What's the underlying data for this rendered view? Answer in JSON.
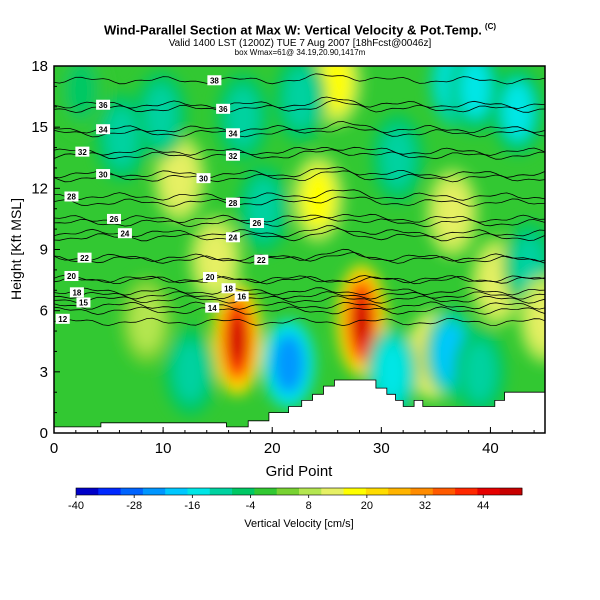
{
  "header": {
    "title": "Wind-Parallel Section at Max W: Vertical Velocity & Pot.Temp.",
    "title_mark": "(C)",
    "subtitle": "Valid 1400 LST (1200Z) TUE 7 Aug 2007 [18hFcst@0046z]",
    "subtitle2": "box Wmax=61@ 34.19,20.90,1417m"
  },
  "chart_data": {
    "type": "heatmap",
    "xlabel": "Grid Point",
    "ylabel": "Height [Kft MSL]",
    "xlim": [
      0,
      45
    ],
    "ylim": [
      0,
      18
    ],
    "xticks": [
      0,
      10,
      20,
      30,
      40
    ],
    "yticks": [
      0,
      3,
      6,
      9,
      12,
      15,
      18
    ],
    "colorbar": {
      "label": "Vertical Velocity [cm/s]",
      "range": [
        -40,
        52
      ],
      "ticks": [
        -40,
        -28,
        -16,
        -4,
        8,
        20,
        32,
        44
      ],
      "colors": [
        "#0000c8",
        "#0028ff",
        "#0064ff",
        "#0096ff",
        "#00c8ff",
        "#00e6e6",
        "#00d2a0",
        "#00c864",
        "#32c832",
        "#78d232",
        "#b4e650",
        "#e6f064",
        "#ffff00",
        "#ffdc00",
        "#ffb400",
        "#ff8c00",
        "#ff5a00",
        "#ff2800",
        "#e60000",
        "#c80000"
      ]
    },
    "wcells": [
      {
        "x": 16.8,
        "y": 4.6,
        "v": 50
      },
      {
        "x": 28.2,
        "y": 5.5,
        "v": 50
      },
      {
        "x": 21.5,
        "y": 3.4,
        "v": -28
      },
      {
        "x": 25.8,
        "y": 17.2,
        "v": 22
      },
      {
        "x": 11.5,
        "y": 12.5,
        "v": 14
      },
      {
        "x": 14.8,
        "y": 8.5,
        "v": 16
      },
      {
        "x": 24.2,
        "y": 11.5,
        "v": 22
      },
      {
        "x": 34.8,
        "y": 3.8,
        "v": 26
      },
      {
        "x": 36.3,
        "y": 3.9,
        "v": -24
      },
      {
        "x": 36.5,
        "y": 10.8,
        "v": 14
      },
      {
        "x": 40.6,
        "y": 7.4,
        "v": 14
      },
      {
        "x": 36.8,
        "y": 17.2,
        "v": -20
      },
      {
        "x": 38.6,
        "y": 16.9,
        "v": -16
      },
      {
        "x": 42.5,
        "y": 15.8,
        "v": -16
      },
      {
        "x": 43.5,
        "y": 8.2,
        "v": -14
      },
      {
        "x": 31.5,
        "y": 13.5,
        "v": -14
      },
      {
        "x": 19.2,
        "y": 11.0,
        "v": -14
      },
      {
        "x": 17.3,
        "y": 15.5,
        "v": -12
      },
      {
        "x": 6.2,
        "y": 14.5,
        "v": -10
      },
      {
        "x": 9.8,
        "y": 15.6,
        "v": -12
      },
      {
        "x": 22.6,
        "y": 16.4,
        "v": -12
      },
      {
        "x": 45.0,
        "y": 5.6,
        "v": 18
      },
      {
        "x": 31.0,
        "y": 3.0,
        "v": -18
      },
      {
        "x": 2.5,
        "y": 16.8,
        "v": -6
      },
      {
        "x": 8.5,
        "y": 5.5,
        "v": 8
      },
      {
        "x": 12.5,
        "y": 3.0,
        "v": -12
      },
      {
        "x": 39.0,
        "y": 3.0,
        "v": -10
      }
    ],
    "theta_contours": [
      {
        "label": "12",
        "y": 5.6,
        "label_x": 0.8
      },
      {
        "label": "14",
        "y": 6.15,
        "label_x": 14.5
      },
      {
        "label": "15",
        "y": 6.4,
        "label_x": 2.7
      },
      {
        "label": "16",
        "y": 6.7,
        "label_x": 17.2
      },
      {
        "label": "18",
        "y": 6.9,
        "label_x": 2.1
      },
      {
        "label": "18",
        "y": 7.1,
        "label_x": 16.0
      },
      {
        "label": "20",
        "y": 7.7,
        "label_x": 1.6
      },
      {
        "label": "20",
        "y": 7.65,
        "label_x": 14.3
      },
      {
        "label": "22",
        "y": 8.6,
        "label_x": 2.8
      },
      {
        "label": "22",
        "y": 8.5,
        "label_x": 19.0
      },
      {
        "label": "24",
        "y": 9.8,
        "label_x": 6.5
      },
      {
        "label": "24",
        "y": 9.6,
        "label_x": 16.4
      },
      {
        "label": "26",
        "y": 10.5,
        "label_x": 5.5
      },
      {
        "label": "26",
        "y": 10.3,
        "label_x": 18.6
      },
      {
        "label": "28",
        "y": 11.6,
        "label_x": 1.6
      },
      {
        "label": "28",
        "y": 11.3,
        "label_x": 16.4
      },
      {
        "label": "30",
        "y": 12.7,
        "label_x": 4.5
      },
      {
        "label": "30",
        "y": 12.5,
        "label_x": 13.7
      },
      {
        "label": "32",
        "y": 13.8,
        "label_x": 2.6
      },
      {
        "label": "32",
        "y": 13.6,
        "label_x": 16.4
      },
      {
        "label": "34",
        "y": 14.9,
        "label_x": 4.5
      },
      {
        "label": "34",
        "y": 14.7,
        "label_x": 16.4
      },
      {
        "label": "36",
        "y": 16.1,
        "label_x": 4.5
      },
      {
        "label": "36",
        "y": 15.9,
        "label_x": 15.5
      },
      {
        "label": "38",
        "y": 17.3,
        "label_x": 14.7
      }
    ],
    "terrain": [
      [
        0,
        0.3
      ],
      [
        4.3,
        0.3
      ],
      [
        4.3,
        0.5
      ],
      [
        15.8,
        0.5
      ],
      [
        15.8,
        0.3
      ],
      [
        17.8,
        0.3
      ],
      [
        17.8,
        0.6
      ],
      [
        19.7,
        0.6
      ],
      [
        19.7,
        1.0
      ],
      [
        21.5,
        1.0
      ],
      [
        21.5,
        1.3
      ],
      [
        22.7,
        1.3
      ],
      [
        22.7,
        1.6
      ],
      [
        23.7,
        1.6
      ],
      [
        23.7,
        1.9
      ],
      [
        24.7,
        1.9
      ],
      [
        24.7,
        2.3
      ],
      [
        25.7,
        2.3
      ],
      [
        25.7,
        2.6
      ],
      [
        29.5,
        2.6
      ],
      [
        29.5,
        2.2
      ],
      [
        30.5,
        2.2
      ],
      [
        30.5,
        1.9
      ],
      [
        31.3,
        1.9
      ],
      [
        31.3,
        1.6
      ],
      [
        32.0,
        1.6
      ],
      [
        32.0,
        1.3
      ],
      [
        33.0,
        1.3
      ],
      [
        33.0,
        1.6
      ],
      [
        33.8,
        1.6
      ],
      [
        33.8,
        1.3
      ],
      [
        40.4,
        1.3
      ],
      [
        40.4,
        1.6
      ],
      [
        41.3,
        1.6
      ],
      [
        41.3,
        2.0
      ],
      [
        45,
        2.0
      ]
    ]
  }
}
